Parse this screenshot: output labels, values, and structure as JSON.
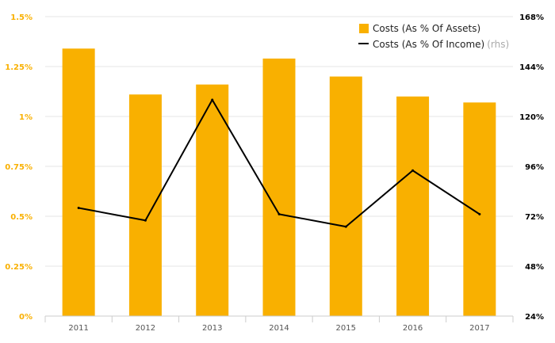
{
  "chart_data": {
    "type": "bar",
    "categories": [
      "2011",
      "2012",
      "2013",
      "2014",
      "2015",
      "2016",
      "2017"
    ],
    "series": [
      {
        "name": "Costs (As % Of Assets)",
        "type": "bar",
        "axis": "left",
        "color": "#f9b000",
        "values": [
          1.34,
          1.11,
          1.16,
          1.29,
          1.2,
          1.1,
          1.07
        ]
      },
      {
        "name": "Costs (As % Of Income)",
        "name_suffix": "(rhs)",
        "type": "line",
        "axis": "right",
        "color": "#000000",
        "values": [
          76,
          70,
          128,
          73,
          67,
          94,
          73
        ]
      }
    ],
    "y_left": {
      "ylim": [
        0,
        1.5
      ],
      "ticks": [
        0,
        0.25,
        0.5,
        0.75,
        1,
        1.25,
        1.5
      ],
      "tick_labels": [
        "0%",
        "0.25%",
        "0.5%",
        "0.75%",
        "1%",
        "1.25%",
        "1.5%"
      ],
      "color": "#f9b000"
    },
    "y_right": {
      "ylim": [
        24,
        168
      ],
      "ticks": [
        24,
        48,
        72,
        96,
        120,
        144,
        168
      ],
      "tick_labels": [
        "24%",
        "48%",
        "72%",
        "96%",
        "120%",
        "144%",
        "168%"
      ],
      "color": "#000000"
    },
    "grid": true,
    "legend_position": "top-right",
    "title": "",
    "xlabel": "",
    "ylabel": ""
  },
  "colors": {
    "grid": "#e6e6e6",
    "axis": "#cccccc",
    "suffix": "#aaaaaa",
    "x_tick_text": "#555555"
  }
}
